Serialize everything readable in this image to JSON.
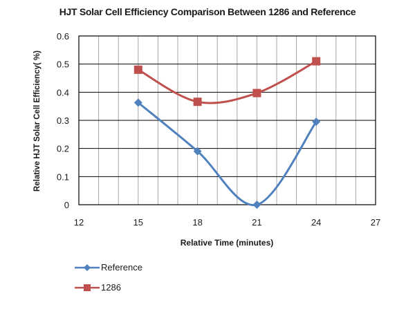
{
  "chart_data": {
    "type": "line",
    "title": "HJT Solar Cell Efficiency Comparison Between 1286 and Reference",
    "xlabel": "Relative Time (minutes)",
    "ylabel": "Relative HJT Solar  Cell Efficiency( %)",
    "xlim": [
      12,
      27
    ],
    "ylim": [
      0,
      0.6
    ],
    "x_ticks": [
      "12",
      "15",
      "18",
      "21",
      "24",
      "27"
    ],
    "y_ticks": [
      "0",
      "0.1",
      "0.2",
      "0.3",
      "0.4",
      "0.5",
      "0.6"
    ],
    "grid": {
      "horizontal": true,
      "vertical": true,
      "vertical_step": 1,
      "horizontal_step": 0.1
    },
    "smooth": true,
    "legend_position": "bottom-left",
    "x": [
      15,
      18,
      21,
      24
    ],
    "series": [
      {
        "name": "Reference",
        "marker": "diamond",
        "color": "#4F81BD",
        "values": [
          0.363,
          0.19,
          0.0,
          0.295
        ]
      },
      {
        "name": "1286",
        "marker": "square",
        "color": "#C0504D",
        "values": [
          0.48,
          0.366,
          0.397,
          0.51
        ]
      }
    ]
  },
  "legend": {
    "items": [
      {
        "label": "Reference",
        "color": "#4F81BD",
        "marker": "diamond"
      },
      {
        "label": "1286",
        "color": "#C0504D",
        "marker": "square"
      }
    ]
  }
}
